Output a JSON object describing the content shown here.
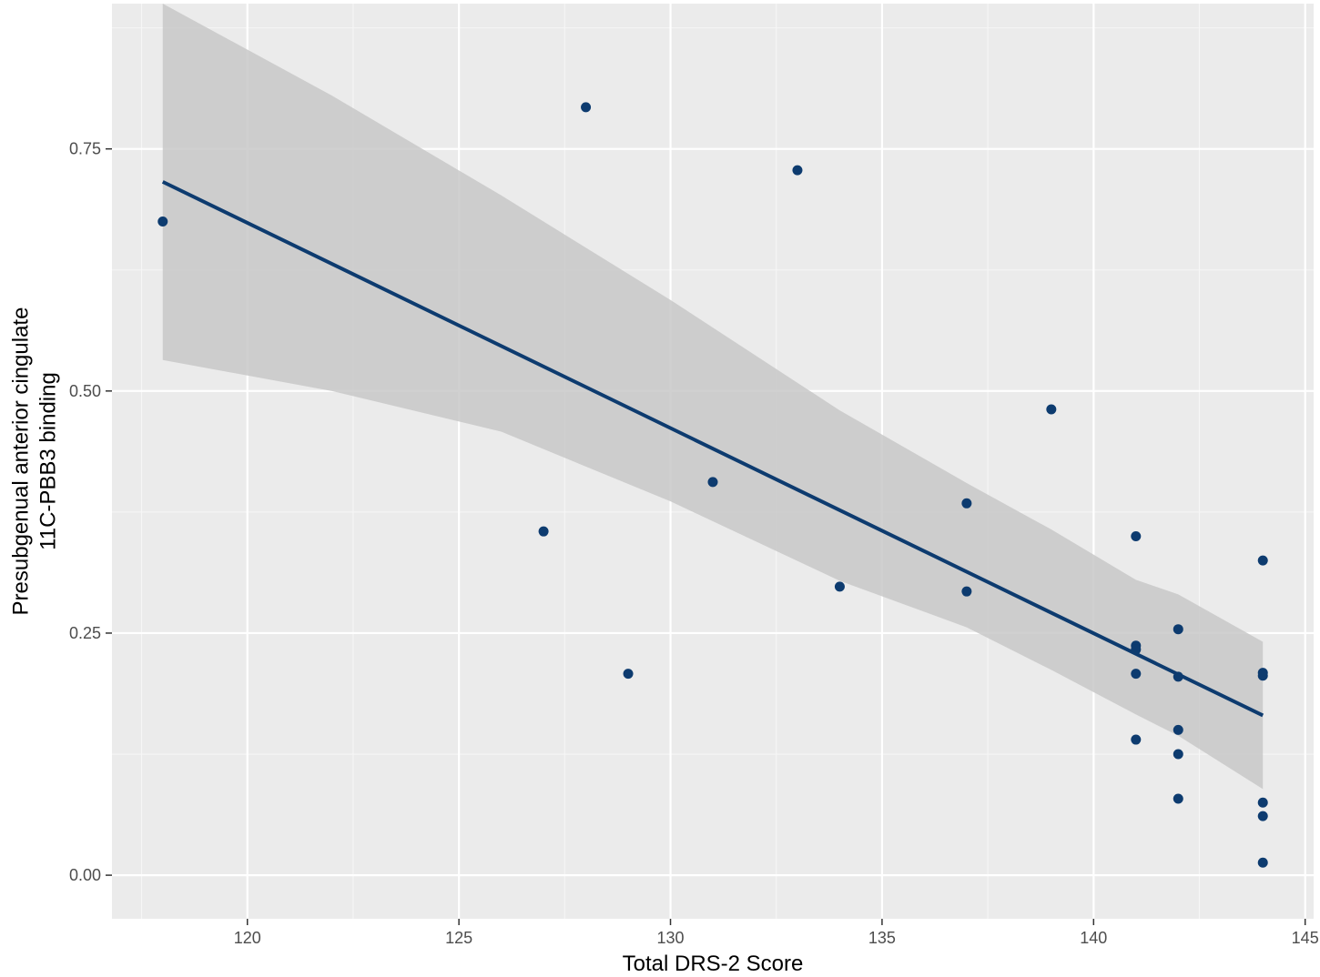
{
  "chart_data": {
    "type": "scatter",
    "title": "",
    "xlabel": "Total DRS-2 Score",
    "ylabel_lines": [
      "Presubgenual anterior cingulate",
      "11C-PBB3 binding"
    ],
    "xlim": [
      116.8,
      145.2
    ],
    "ylim": [
      -0.045,
      0.9
    ],
    "x_ticks": [
      120,
      125,
      130,
      135,
      140,
      145
    ],
    "x_tick_labels": [
      "120",
      "125",
      "130",
      "135",
      "140",
      "145"
    ],
    "x_minor_ticks": [
      117.5,
      122.5,
      127.5,
      132.5,
      137.5,
      142.5
    ],
    "y_ticks": [
      0.0,
      0.25,
      0.5,
      0.75
    ],
    "y_tick_labels": [
      "0.00",
      "0.25",
      "0.50",
      "0.75"
    ],
    "y_minor_ticks": [
      0.125,
      0.375,
      0.625,
      0.875
    ],
    "grid": true,
    "legend": "none",
    "series": [
      {
        "points": [
          {
            "x": 118,
            "y": 0.675
          },
          {
            "x": 127,
            "y": 0.355
          },
          {
            "x": 128,
            "y": 0.793
          },
          {
            "x": 129,
            "y": 0.208
          },
          {
            "x": 131,
            "y": 0.406
          },
          {
            "x": 133,
            "y": 0.728
          },
          {
            "x": 134,
            "y": 0.298
          },
          {
            "x": 137,
            "y": 0.384
          },
          {
            "x": 137,
            "y": 0.293
          },
          {
            "x": 139,
            "y": 0.481
          },
          {
            "x": 141,
            "y": 0.35
          },
          {
            "x": 141,
            "y": 0.237
          },
          {
            "x": 141,
            "y": 0.233
          },
          {
            "x": 141,
            "y": 0.208
          },
          {
            "x": 141,
            "y": 0.14
          },
          {
            "x": 142,
            "y": 0.254
          },
          {
            "x": 142,
            "y": 0.205
          },
          {
            "x": 142,
            "y": 0.15
          },
          {
            "x": 142,
            "y": 0.125
          },
          {
            "x": 142,
            "y": 0.079
          },
          {
            "x": 144,
            "y": 0.325
          },
          {
            "x": 144,
            "y": 0.209
          },
          {
            "x": 144,
            "y": 0.206
          },
          {
            "x": 144,
            "y": 0.075
          },
          {
            "x": 144,
            "y": 0.061
          },
          {
            "x": 144,
            "y": 0.013
          }
        ]
      }
    ],
    "fit_line": {
      "x": [
        118,
        144
      ],
      "y": [
        0.716,
        0.165
      ]
    },
    "confidence_band": {
      "x": [
        118,
        122,
        126,
        130,
        134,
        137,
        139,
        141,
        142,
        144
      ],
      "upper": [
        0.9,
        0.805,
        0.702,
        0.594,
        0.48,
        0.405,
        0.357,
        0.305,
        0.29,
        0.241
      ],
      "lower": [
        0.532,
        0.5,
        0.458,
        0.386,
        0.304,
        0.256,
        0.212,
        0.166,
        0.144,
        0.089
      ]
    },
    "colors": {
      "panel_background": "#ebebeb",
      "grid_major": "#ffffff",
      "grid_minor": "#f6f6f6",
      "point": "#0d3b6f",
      "line": "#0d3b6f",
      "band": "#c8c8c8",
      "tick_label": "#4d4d4d",
      "tick": "#333333"
    }
  }
}
